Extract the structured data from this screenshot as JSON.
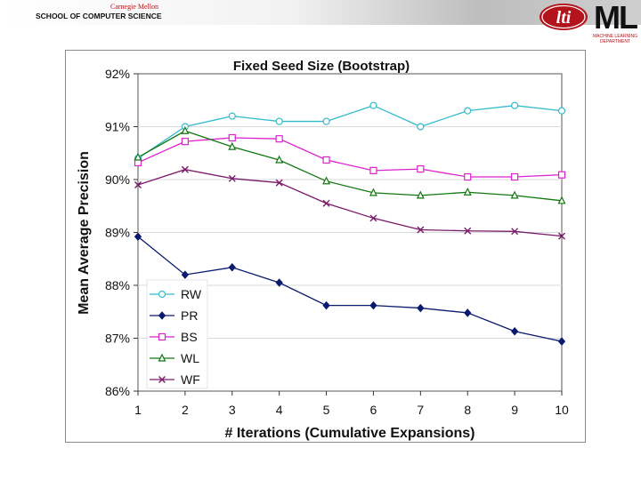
{
  "header": {
    "university": "Carnegie Mellon",
    "school": "SCHOOL OF COMPUTER SCIENCE",
    "logo_lti": "lti",
    "logo_ml": "ML",
    "logo_ml_caption": "MACHINE LEARNING DEPARTMENT"
  },
  "colors": {
    "RW": "#33bbcc",
    "PR": "#0a1a6e",
    "BS": "#dd22cc",
    "WL": "#117711",
    "WF": "#7a1a6a",
    "brand_red": "#b3131b"
  },
  "chart_data": {
    "type": "line",
    "title": "Fixed Seed Size (Bootstrap)",
    "xlabel": "# Iterations (Cumulative Expansions)",
    "ylabel": "Mean Average Precision",
    "x": [
      1,
      2,
      3,
      4,
      5,
      6,
      7,
      8,
      9,
      10
    ],
    "xlim": [
      1,
      10
    ],
    "ylim": [
      0.86,
      0.92
    ],
    "yticks": [
      "86%",
      "87%",
      "88%",
      "89%",
      "90%",
      "91%",
      "92%"
    ],
    "legend_position": "bottom-left",
    "series": [
      {
        "name": "RW",
        "marker": "circle",
        "values": [
          0.904,
          0.91,
          0.912,
          0.911,
          0.911,
          0.914,
          0.91,
          0.913,
          0.914,
          0.913
        ]
      },
      {
        "name": "PR",
        "marker": "diamond",
        "values": [
          0.8892,
          0.882,
          0.8834,
          0.8805,
          0.8762,
          0.8762,
          0.8757,
          0.8748,
          0.8713,
          0.8694
        ]
      },
      {
        "name": "BS",
        "marker": "square",
        "values": [
          0.9032,
          0.9072,
          0.9079,
          0.9077,
          0.9037,
          0.9017,
          0.902,
          0.9005,
          0.9005,
          0.9009
        ]
      },
      {
        "name": "WL",
        "marker": "triangle",
        "values": [
          0.9042,
          0.9092,
          0.9062,
          0.9037,
          0.8997,
          0.8975,
          0.897,
          0.8976,
          0.897,
          0.896
        ]
      },
      {
        "name": "WF",
        "marker": "x",
        "values": [
          0.899,
          0.9019,
          0.9002,
          0.8994,
          0.8955,
          0.8927,
          0.8905,
          0.8903,
          0.8902,
          0.8893
        ]
      }
    ]
  }
}
